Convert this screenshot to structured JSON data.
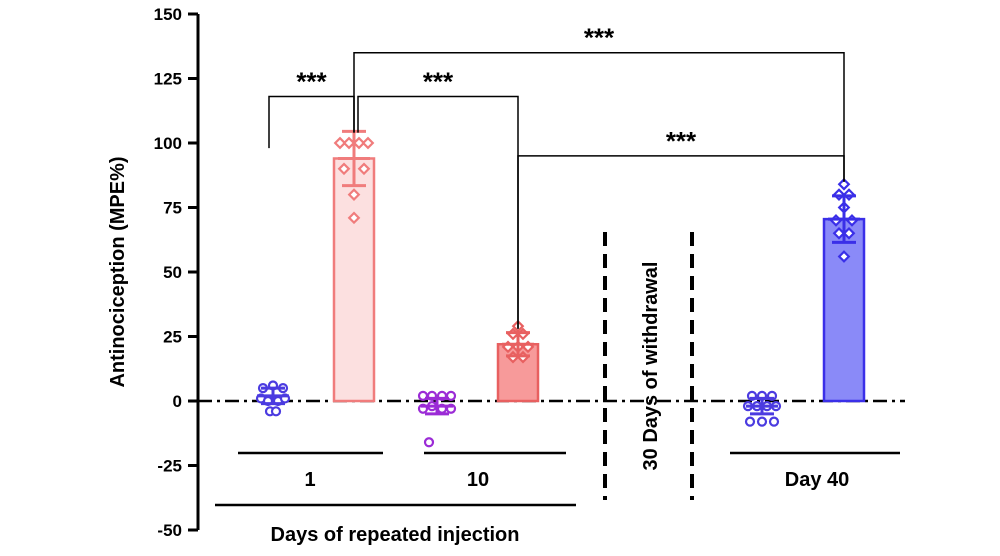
{
  "chart_data": {
    "type": "bar",
    "ylabel": "Antinociception (MPE%)",
    "ylim": [
      -50,
      150
    ],
    "yticks": [
      -50,
      -25,
      0,
      25,
      50,
      75,
      100,
      125,
      150
    ],
    "bars": [
      {
        "group": "1",
        "mean": 2,
        "sd": 3,
        "color": "#4B3BE0",
        "fill": "none",
        "marker": "circle",
        "points": [
          [
            -10,
            5
          ],
          [
            0,
            6
          ],
          [
            10,
            5
          ],
          [
            -12,
            1
          ],
          [
            -5,
            0
          ],
          [
            5,
            0
          ],
          [
            12,
            1
          ],
          [
            -3,
            -4
          ],
          [
            3,
            -4
          ]
        ]
      },
      {
        "group": "1",
        "mean": 94,
        "sd": 10.5,
        "color": "#F07C7C",
        "fill": "#FCE0E0",
        "marker": "diamond",
        "points": [
          [
            -14,
            100
          ],
          [
            -5,
            100
          ],
          [
            5,
            100
          ],
          [
            14,
            100
          ],
          [
            -10,
            90
          ],
          [
            10,
            90
          ],
          [
            0,
            80
          ],
          [
            0,
            71
          ]
        ]
      },
      {
        "group": "10",
        "mean": -2,
        "sd": 3,
        "color": "#9B2BD6",
        "fill": "none",
        "marker": "circle",
        "points": [
          [
            -14,
            2
          ],
          [
            -5,
            2
          ],
          [
            5,
            2
          ],
          [
            14,
            2
          ],
          [
            -14,
            -3
          ],
          [
            -5,
            -2
          ],
          [
            5,
            -3
          ],
          [
            14,
            -3
          ],
          [
            -8,
            -16
          ]
        ]
      },
      {
        "group": "10",
        "mean": 22,
        "sd": 4.5,
        "color": "#E86060",
        "fill": "#F79A9A",
        "marker": "diamond",
        "points": [
          [
            0,
            29
          ],
          [
            -5,
            26
          ],
          [
            5,
            26
          ],
          [
            -10,
            21
          ],
          [
            0,
            21
          ],
          [
            10,
            21
          ],
          [
            -5,
            17
          ],
          [
            5,
            17
          ]
        ]
      },
      {
        "group": "Day 40",
        "mean": -2,
        "sd": 3,
        "color": "#4B3BE0",
        "fill": "none",
        "marker": "circle",
        "points": [
          [
            -10,
            2
          ],
          [
            0,
            2
          ],
          [
            10,
            2
          ],
          [
            -14,
            -2
          ],
          [
            -5,
            -2
          ],
          [
            5,
            -2
          ],
          [
            14,
            -2
          ],
          [
            -12,
            -8
          ],
          [
            0,
            -8
          ],
          [
            12,
            -8
          ]
        ]
      },
      {
        "group": "Day 40",
        "mean": 70.5,
        "sd": 9,
        "color": "#3A2FE8",
        "fill": "#8A8AF8",
        "marker": "diamond",
        "points": [
          [
            0,
            84
          ],
          [
            -5,
            80
          ],
          [
            5,
            80
          ],
          [
            0,
            75
          ],
          [
            -8,
            70
          ],
          [
            8,
            70
          ],
          [
            -5,
            65
          ],
          [
            5,
            65
          ],
          [
            0,
            56
          ]
        ]
      }
    ],
    "significance": [
      {
        "from": 0,
        "to": 1,
        "y": 118,
        "label": "***"
      },
      {
        "from": 1,
        "to": 3,
        "y": 118,
        "label": "***"
      },
      {
        "from": 1,
        "to": 5,
        "y": 135,
        "label": "***"
      },
      {
        "from": 3,
        "to": 5,
        "y": 95,
        "label": "***"
      }
    ],
    "group_labels": [
      "1",
      "10",
      "Day 40"
    ],
    "xlabel": "Days of repeated injection",
    "annotation": "30 Days of withdrawal"
  }
}
